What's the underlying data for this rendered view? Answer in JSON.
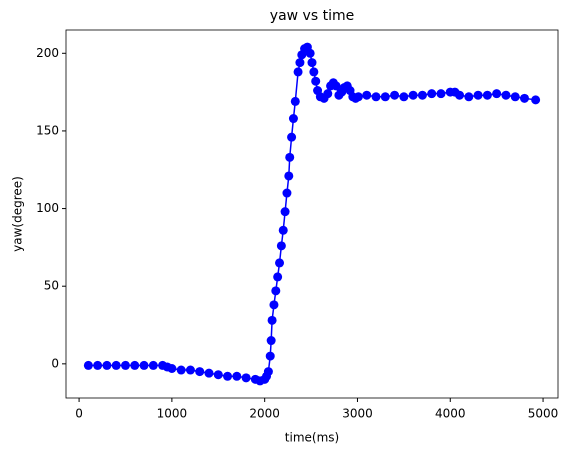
{
  "chart_data": {
    "type": "line",
    "title": "yaw vs time",
    "x_label": "time(ms)",
    "y_label": "yaw(degree)",
    "x": [
      100,
      200,
      300,
      400,
      500,
      600,
      700,
      800,
      900,
      950,
      1000,
      1100,
      1200,
      1300,
      1400,
      1500,
      1600,
      1700,
      1800,
      1900,
      1950,
      2000,
      2020,
      2040,
      2060,
      2070,
      2080,
      2100,
      2120,
      2140,
      2160,
      2180,
      2200,
      2220,
      2240,
      2260,
      2270,
      2290,
      2310,
      2330,
      2360,
      2380,
      2400,
      2430,
      2460,
      2490,
      2510,
      2530,
      2550,
      2570,
      2600,
      2640,
      2680,
      2710,
      2740,
      2770,
      2800,
      2830,
      2860,
      2890,
      2920,
      2950,
      2980,
      3010,
      3100,
      3200,
      3300,
      3400,
      3500,
      3600,
      3700,
      3800,
      3900,
      4000,
      4050,
      4100,
      4200,
      4300,
      4400,
      4500,
      4600,
      4700,
      4800,
      4920
    ],
    "series": [
      {
        "name": "yaw",
        "color": "#0000ff",
        "marker": true,
        "values": [
          -1,
          -1,
          -1,
          -1,
          -1,
          -1,
          -1,
          -1,
          -1,
          -2,
          -3,
          -4,
          -4,
          -5,
          -6,
          -7,
          -8,
          -8,
          -9,
          -10,
          -11,
          -10,
          -8,
          -5,
          5,
          15,
          28,
          38,
          47,
          56,
          65,
          76,
          86,
          98,
          110,
          121,
          133,
          146,
          158,
          169,
          188,
          194,
          199,
          203,
          204,
          200,
          194,
          188,
          182,
          176,
          172,
          171,
          174,
          179,
          181,
          179,
          173,
          175,
          178,
          179,
          176,
          172,
          171,
          172,
          173,
          172,
          172,
          173,
          172,
          173,
          173,
          174,
          174,
          175,
          175,
          173,
          172,
          173,
          173,
          174,
          173,
          172,
          171,
          170
        ]
      }
    ],
    "xlim": [
      -141,
      5161
    ],
    "ylim": [
      -22,
      215
    ],
    "xticks": [
      0,
      1000,
      2000,
      3000,
      4000,
      5000
    ],
    "yticks": [
      0,
      50,
      100,
      150,
      200
    ]
  }
}
